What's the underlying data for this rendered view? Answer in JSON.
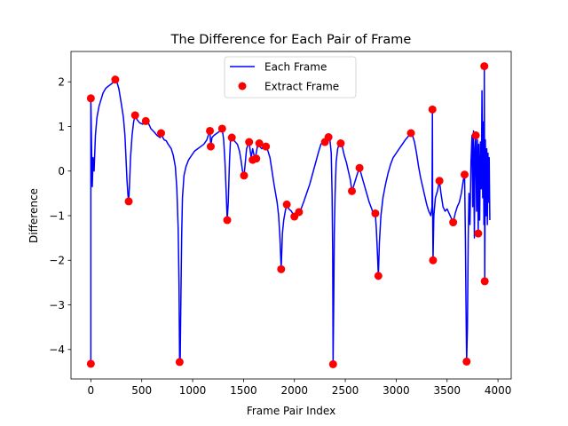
{
  "chart_data": {
    "type": "line",
    "title": "The Difference for Each Pair of Frame",
    "xlabel": "Frame Pair Index",
    "ylabel": "Difference",
    "xlim": [
      -195,
      4130
    ],
    "ylim": [
      -4.66,
      2.68
    ],
    "xticks": [
      0,
      500,
      1000,
      1500,
      2000,
      2500,
      3000,
      3500,
      4000
    ],
    "yticks": [
      -4,
      -3,
      -2,
      -1,
      0,
      1,
      2
    ],
    "legend_position": "top-center",
    "grid": false,
    "series": [
      {
        "name": "Each Frame",
        "kind": "line",
        "color": "#0000ff",
        "points": [
          [
            0,
            -4.32
          ],
          [
            0,
            1.63
          ],
          [
            8,
            0.4
          ],
          [
            14,
            -0.35
          ],
          [
            22,
            0.3
          ],
          [
            32,
            0.0
          ],
          [
            45,
            0.8
          ],
          [
            60,
            1.2
          ],
          [
            80,
            1.45
          ],
          [
            100,
            1.6
          ],
          [
            120,
            1.75
          ],
          [
            145,
            1.85
          ],
          [
            170,
            1.9
          ],
          [
            200,
            1.95
          ],
          [
            225,
            2.0
          ],
          [
            240,
            2.05
          ],
          [
            255,
            2.0
          ],
          [
            275,
            1.85
          ],
          [
            300,
            1.5
          ],
          [
            320,
            1.2
          ],
          [
            335,
            0.8
          ],
          [
            345,
            0.3
          ],
          [
            355,
            -0.2
          ],
          [
            365,
            -0.55
          ],
          [
            372,
            -0.68
          ],
          [
            380,
            -0.3
          ],
          [
            390,
            0.3
          ],
          [
            405,
            0.8
          ],
          [
            420,
            1.1
          ],
          [
            435,
            1.25
          ],
          [
            455,
            1.15
          ],
          [
            480,
            1.08
          ],
          [
            510,
            1.05
          ],
          [
            540,
            1.12
          ],
          [
            560,
            1.1
          ],
          [
            590,
            0.95
          ],
          [
            620,
            0.88
          ],
          [
            650,
            0.8
          ],
          [
            680,
            0.75
          ],
          [
            690,
            0.85
          ],
          [
            700,
            0.78
          ],
          [
            720,
            0.7
          ],
          [
            740,
            0.68
          ],
          [
            760,
            0.6
          ],
          [
            790,
            0.5
          ],
          [
            810,
            0.35
          ],
          [
            830,
            0.1
          ],
          [
            845,
            -0.4
          ],
          [
            858,
            -1.3
          ],
          [
            866,
            -2.5
          ],
          [
            872,
            -4.28
          ],
          [
            878,
            -4.2
          ],
          [
            884,
            -3.0
          ],
          [
            892,
            -1.5
          ],
          [
            900,
            -0.6
          ],
          [
            915,
            -0.1
          ],
          [
            935,
            0.1
          ],
          [
            960,
            0.25
          ],
          [
            990,
            0.35
          ],
          [
            1020,
            0.45
          ],
          [
            1050,
            0.5
          ],
          [
            1080,
            0.55
          ],
          [
            1110,
            0.6
          ],
          [
            1140,
            0.7
          ],
          [
            1160,
            0.85
          ],
          [
            1170,
            0.9
          ],
          [
            1178,
            0.55
          ],
          [
            1190,
            0.75
          ],
          [
            1210,
            0.8
          ],
          [
            1240,
            0.85
          ],
          [
            1270,
            0.9
          ],
          [
            1290,
            0.95
          ],
          [
            1305,
            0.7
          ],
          [
            1318,
            0.2
          ],
          [
            1330,
            -0.5
          ],
          [
            1340,
            -1.1
          ],
          [
            1350,
            -0.7
          ],
          [
            1362,
            0.2
          ],
          [
            1372,
            0.7
          ],
          [
            1385,
            0.75
          ],
          [
            1400,
            0.7
          ],
          [
            1420,
            0.65
          ],
          [
            1440,
            0.6
          ],
          [
            1460,
            0.45
          ],
          [
            1475,
            0.25
          ],
          [
            1490,
            0.0
          ],
          [
            1505,
            -0.1
          ],
          [
            1518,
            0.2
          ],
          [
            1530,
            0.5
          ],
          [
            1545,
            0.6
          ],
          [
            1555,
            0.65
          ],
          [
            1575,
            0.3
          ],
          [
            1590,
            0.5
          ],
          [
            1610,
            0.28
          ],
          [
            1625,
            0.4
          ],
          [
            1640,
            0.6
          ],
          [
            1660,
            0.55
          ],
          [
            1680,
            0.5
          ],
          [
            1700,
            0.58
          ],
          [
            1720,
            0.55
          ],
          [
            1740,
            0.45
          ],
          [
            1760,
            0.3
          ],
          [
            1780,
            0.0
          ],
          [
            1800,
            -0.3
          ],
          [
            1815,
            -0.5
          ],
          [
            1830,
            -0.7
          ],
          [
            1845,
            -1.0
          ],
          [
            1858,
            -1.5
          ],
          [
            1870,
            -2.2
          ],
          [
            1882,
            -1.4
          ],
          [
            1895,
            -1.1
          ],
          [
            1910,
            -0.9
          ],
          [
            1925,
            -0.75
          ],
          [
            1945,
            -0.85
          ],
          [
            1970,
            -0.9
          ],
          [
            2000,
            -1.02
          ],
          [
            2020,
            -0.88
          ],
          [
            2045,
            -0.92
          ],
          [
            2065,
            -0.85
          ],
          [
            2090,
            -0.7
          ],
          [
            2120,
            -0.5
          ],
          [
            2150,
            -0.3
          ],
          [
            2180,
            -0.05
          ],
          [
            2210,
            0.2
          ],
          [
            2240,
            0.45
          ],
          [
            2260,
            0.6
          ],
          [
            2280,
            0.66
          ],
          [
            2300,
            0.65
          ],
          [
            2320,
            0.7
          ],
          [
            2335,
            0.76
          ],
          [
            2350,
            0.68
          ],
          [
            2362,
            0.4
          ],
          [
            2370,
            -0.5
          ],
          [
            2376,
            -1.8
          ],
          [
            2380,
            -4.33
          ],
          [
            2386,
            -3.0
          ],
          [
            2392,
            -1.4
          ],
          [
            2400,
            -0.5
          ],
          [
            2410,
            0.2
          ],
          [
            2425,
            0.5
          ],
          [
            2440,
            0.6
          ],
          [
            2455,
            0.62
          ],
          [
            2470,
            0.55
          ],
          [
            2490,
            0.35
          ],
          [
            2510,
            0.2
          ],
          [
            2530,
            0.0
          ],
          [
            2550,
            -0.2
          ],
          [
            2565,
            -0.45
          ],
          [
            2580,
            -0.35
          ],
          [
            2600,
            -0.2
          ],
          [
            2620,
            -0.05
          ],
          [
            2640,
            0.07
          ],
          [
            2660,
            -0.1
          ],
          [
            2685,
            -0.3
          ],
          [
            2710,
            -0.5
          ],
          [
            2735,
            -0.7
          ],
          [
            2760,
            -0.85
          ],
          [
            2780,
            -1.0
          ],
          [
            2795,
            -0.95
          ],
          [
            2805,
            -1.3
          ],
          [
            2815,
            -1.8
          ],
          [
            2825,
            -2.35
          ],
          [
            2835,
            -1.6
          ],
          [
            2850,
            -1.0
          ],
          [
            2870,
            -0.6
          ],
          [
            2895,
            -0.3
          ],
          [
            2920,
            -0.05
          ],
          [
            2945,
            0.15
          ],
          [
            2970,
            0.3
          ],
          [
            3000,
            0.4
          ],
          [
            3030,
            0.5
          ],
          [
            3060,
            0.6
          ],
          [
            3090,
            0.7
          ],
          [
            3120,
            0.78
          ],
          [
            3145,
            0.85
          ],
          [
            3160,
            0.8
          ],
          [
            3180,
            0.65
          ],
          [
            3200,
            0.4
          ],
          [
            3220,
            0.1
          ],
          [
            3240,
            -0.15
          ],
          [
            3260,
            -0.35
          ],
          [
            3280,
            -0.55
          ],
          [
            3300,
            -0.75
          ],
          [
            3320,
            -0.9
          ],
          [
            3340,
            -1.0
          ],
          [
            3352,
            -0.8
          ],
          [
            3356,
            1.38
          ],
          [
            3358,
            -0.8
          ],
          [
            3362,
            -2.0
          ],
          [
            3370,
            -1.0
          ],
          [
            3385,
            -0.6
          ],
          [
            3405,
            -0.45
          ],
          [
            3425,
            -0.22
          ],
          [
            3440,
            -0.5
          ],
          [
            3460,
            -0.8
          ],
          [
            3480,
            -0.9
          ],
          [
            3500,
            -0.85
          ],
          [
            3520,
            -0.95
          ],
          [
            3540,
            -1.05
          ],
          [
            3560,
            -1.15
          ],
          [
            3580,
            -0.95
          ],
          [
            3600,
            -0.8
          ],
          [
            3620,
            -0.7
          ],
          [
            3640,
            -0.5
          ],
          [
            3660,
            -0.2
          ],
          [
            3672,
            -0.08
          ],
          [
            3680,
            -1.5
          ],
          [
            3686,
            -3.0
          ],
          [
            3692,
            -4.27
          ],
          [
            3700,
            -3.5
          ],
          [
            3708,
            -1.5
          ],
          [
            3715,
            -0.5
          ],
          [
            3725,
            -1.2
          ],
          [
            3735,
            0.2
          ],
          [
            3745,
            0.8
          ],
          [
            3752,
            -0.8
          ],
          [
            3760,
            0.9
          ],
          [
            3768,
            -1.5
          ],
          [
            3775,
            0.5
          ],
          [
            3782,
            0.8
          ],
          [
            3790,
            -0.9
          ],
          [
            3798,
            0.7
          ],
          [
            3806,
            -1.4
          ],
          [
            3812,
            0.6
          ],
          [
            3820,
            -1.1
          ],
          [
            3828,
            0.65
          ],
          [
            3836,
            -0.4
          ],
          [
            3843,
            1.8
          ],
          [
            3850,
            -0.6
          ],
          [
            3856,
            1.1
          ],
          [
            3862,
            -1.2
          ],
          [
            3866,
            2.35
          ],
          [
            3870,
            -2.47
          ],
          [
            3876,
            0.7
          ],
          [
            3884,
            -1.0
          ],
          [
            3890,
            0.5
          ],
          [
            3896,
            -1.2
          ],
          [
            3902,
            0.4
          ],
          [
            3908,
            -0.7
          ],
          [
            3914,
            0.3
          ],
          [
            3920,
            -1.1
          ]
        ]
      },
      {
        "name": "Extract Frame",
        "kind": "scatter",
        "color": "#ff0000",
        "points": [
          [
            0,
            1.63
          ],
          [
            0,
            -4.32
          ],
          [
            240,
            2.05
          ],
          [
            372,
            -0.68
          ],
          [
            435,
            1.25
          ],
          [
            540,
            1.12
          ],
          [
            690,
            0.85
          ],
          [
            872,
            -4.28
          ],
          [
            1170,
            0.9
          ],
          [
            1178,
            0.55
          ],
          [
            1290,
            0.95
          ],
          [
            1340,
            -1.1
          ],
          [
            1385,
            0.75
          ],
          [
            1505,
            -0.1
          ],
          [
            1555,
            0.65
          ],
          [
            1590,
            0.25
          ],
          [
            1625,
            0.28
          ],
          [
            1655,
            0.62
          ],
          [
            1720,
            0.55
          ],
          [
            1870,
            -2.2
          ],
          [
            1925,
            -0.75
          ],
          [
            2000,
            -1.02
          ],
          [
            2045,
            -0.92
          ],
          [
            2300,
            0.65
          ],
          [
            2335,
            0.76
          ],
          [
            2380,
            -4.33
          ],
          [
            2455,
            0.62
          ],
          [
            2565,
            -0.45
          ],
          [
            2640,
            0.07
          ],
          [
            2795,
            -0.95
          ],
          [
            2825,
            -2.35
          ],
          [
            3145,
            0.85
          ],
          [
            3356,
            1.38
          ],
          [
            3362,
            -2.0
          ],
          [
            3425,
            -0.22
          ],
          [
            3560,
            -1.15
          ],
          [
            3672,
            -0.08
          ],
          [
            3692,
            -4.27
          ],
          [
            3782,
            0.8
          ],
          [
            3806,
            -1.4
          ],
          [
            3866,
            2.35
          ],
          [
            3870,
            -2.47
          ]
        ]
      }
    ]
  }
}
